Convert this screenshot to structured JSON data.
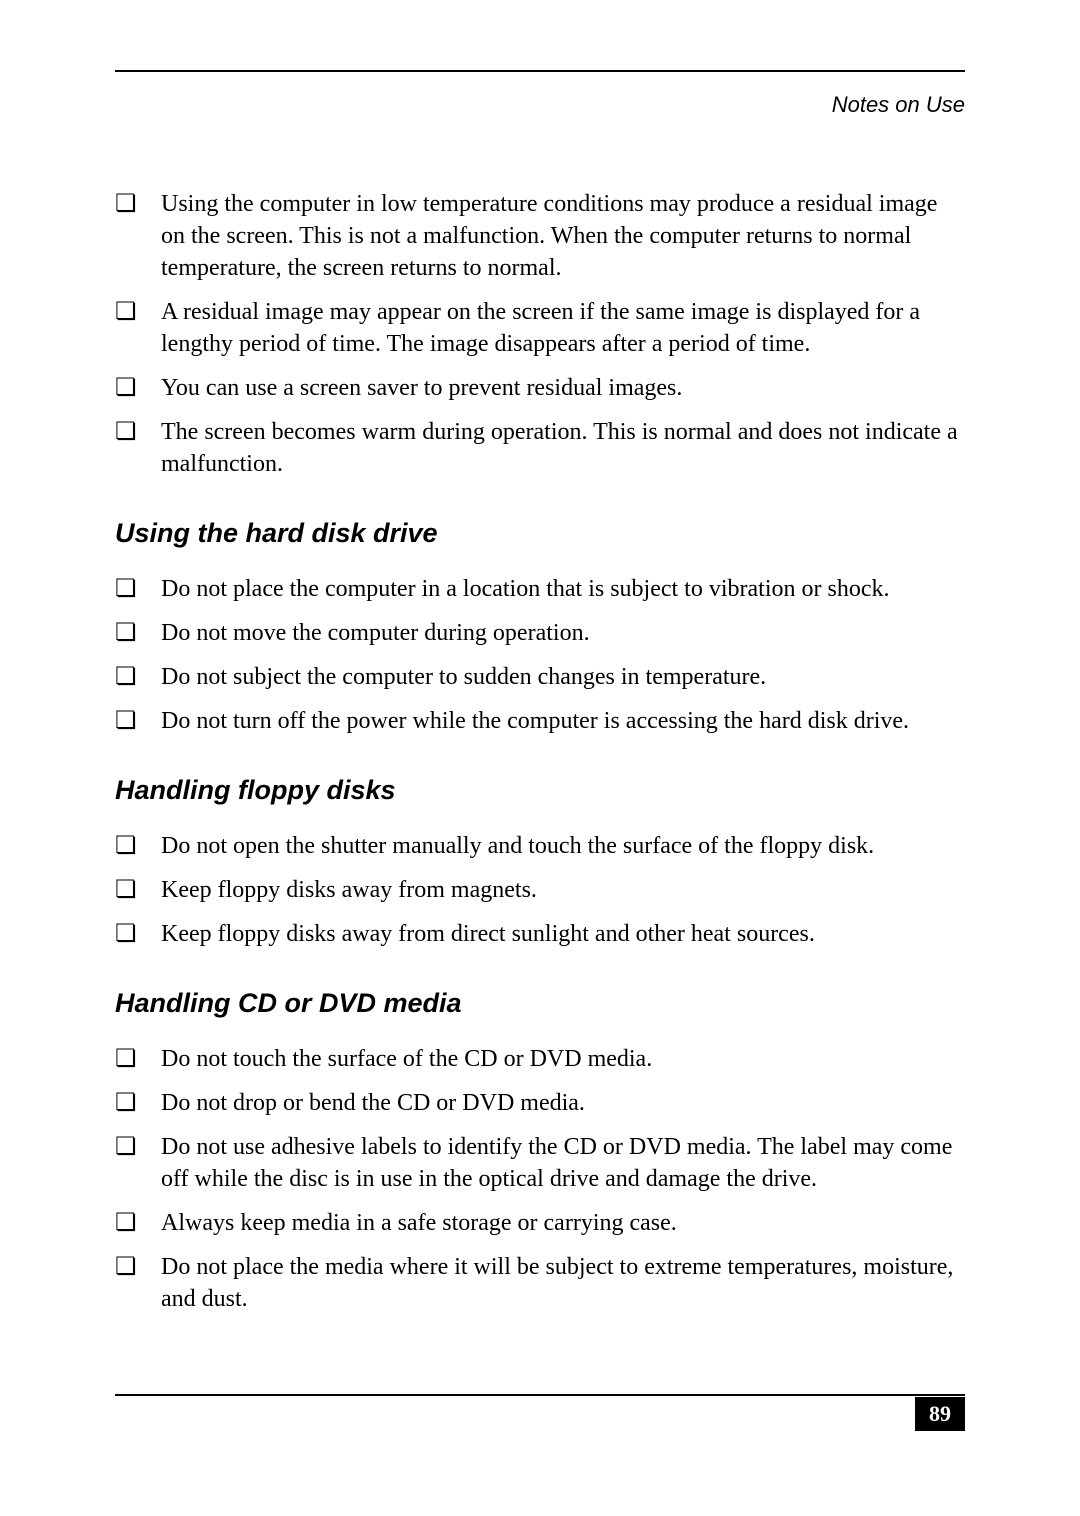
{
  "header": {
    "title": "Notes on Use"
  },
  "top_list": {
    "items": [
      "Using the computer in low temperature conditions may produce a residual image on the screen. This is not a malfunction. When the computer returns to normal temperature, the screen returns to normal.",
      "A residual image may appear on the screen if the same image is displayed for a lengthy period of time. The image disappears after a period of time.",
      "You can use a screen saver to prevent residual images.",
      "The screen becomes warm during operation. This is normal and does not indicate a malfunction."
    ]
  },
  "sections": [
    {
      "heading": "Using the hard disk drive",
      "items": [
        "Do not place the computer in a location that is subject to vibration or shock.",
        "Do not move the computer during operation.",
        "Do not subject the computer to sudden changes in temperature.",
        "Do not turn off the power while the computer is accessing the hard disk drive."
      ]
    },
    {
      "heading": "Handling floppy disks",
      "items": [
        "Do not open the shutter manually and touch the surface of the floppy disk.",
        "Keep floppy disks away from magnets.",
        "Keep floppy disks away from direct sunlight and other heat sources."
      ]
    },
    {
      "heading": "Handling CD or DVD media",
      "items": [
        "Do not touch the surface of the CD or DVD media.",
        "Do not drop or bend the CD or DVD media.",
        "Do not use adhesive labels to identify the CD or DVD media. The label may come off while the disc is in use in the optical drive and damage the drive.",
        "Always keep media in a safe storage or carrying case.",
        "Do not place the media where it will be subject to extreme temperatures, moisture, and dust."
      ]
    }
  ],
  "page_number": "89",
  "bullet_glyph": "❏",
  "colors": {
    "text": "#000000",
    "background": "#ffffff",
    "page_number_bg": "#000000",
    "page_number_fg": "#ffffff"
  },
  "typography": {
    "body_fontsize": 24,
    "heading_fontsize": 27,
    "header_fontsize": 22
  }
}
